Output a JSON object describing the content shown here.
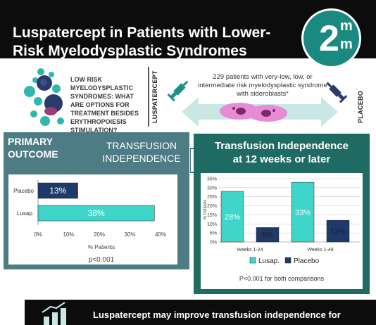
{
  "title": "Luspatercept in Patients with Lower-Risk Myelodysplastic Syndromes",
  "logo": {
    "big": "2",
    "top": "m",
    "bottom": "m"
  },
  "question": "LOW RISK MYELODYSPLASTIC SYNDROMES: WHAT ARE OPTIONS FOR TREATMENT BESIDES ERYTHROPOIESIS STIMULATION?",
  "arm_labels": {
    "left": "LUSPATERCEPT",
    "right": "PLACEBO"
  },
  "population": "229 patients with very-low, low, or intermediate risk myelodysplastic syndrome with sideroblasts*",
  "primary": {
    "label_line1": "PRIMARY",
    "label_line2": "OUTCOME",
    "measure_line1": "TRANSFUSION",
    "measure_line2": "INDEPENDENCE",
    "p_value": "p<0.001"
  },
  "panel2": {
    "title_line1": "Transfusion Independence",
    "title_line2": "at 12 weeks or later",
    "p_value": "P<0.001 for both comparisons"
  },
  "bottom_text": "Luspatercept may improve transfusion independence for",
  "colors": {
    "luspatercept": "#3fd6c9",
    "placebo": "#1e3a6a",
    "teal_dark": "#1f6a63",
    "slate": "#4d7c84"
  },
  "chart_data": [
    {
      "type": "bar",
      "orientation": "horizontal",
      "categories": [
        "Placebo",
        "Lusap."
      ],
      "values": [
        13,
        38
      ],
      "value_labels": [
        "13%",
        "38%"
      ],
      "xlabel": "% Patients",
      "xticks": [
        "0%",
        "10%",
        "20%",
        "30%",
        "40%"
      ],
      "xlim": [
        0,
        40
      ]
    },
    {
      "type": "bar",
      "categories": [
        "Weeks 1-24",
        "Weeks 1-48"
      ],
      "series": [
        {
          "name": "Lusap.",
          "values": [
            28,
            33
          ],
          "labels": [
            "28%",
            "33%"
          ]
        },
        {
          "name": "Placebo",
          "values": [
            8,
            12
          ],
          "labels": [
            "8%",
            "12%"
          ]
        }
      ],
      "ylabel": "% Patients",
      "yticks": [
        "0%",
        "5%",
        "10%",
        "15%",
        "20%",
        "25%",
        "30%",
        "35%"
      ],
      "ylim": [
        0,
        35
      ],
      "grid": true,
      "legend": "bottom"
    }
  ]
}
